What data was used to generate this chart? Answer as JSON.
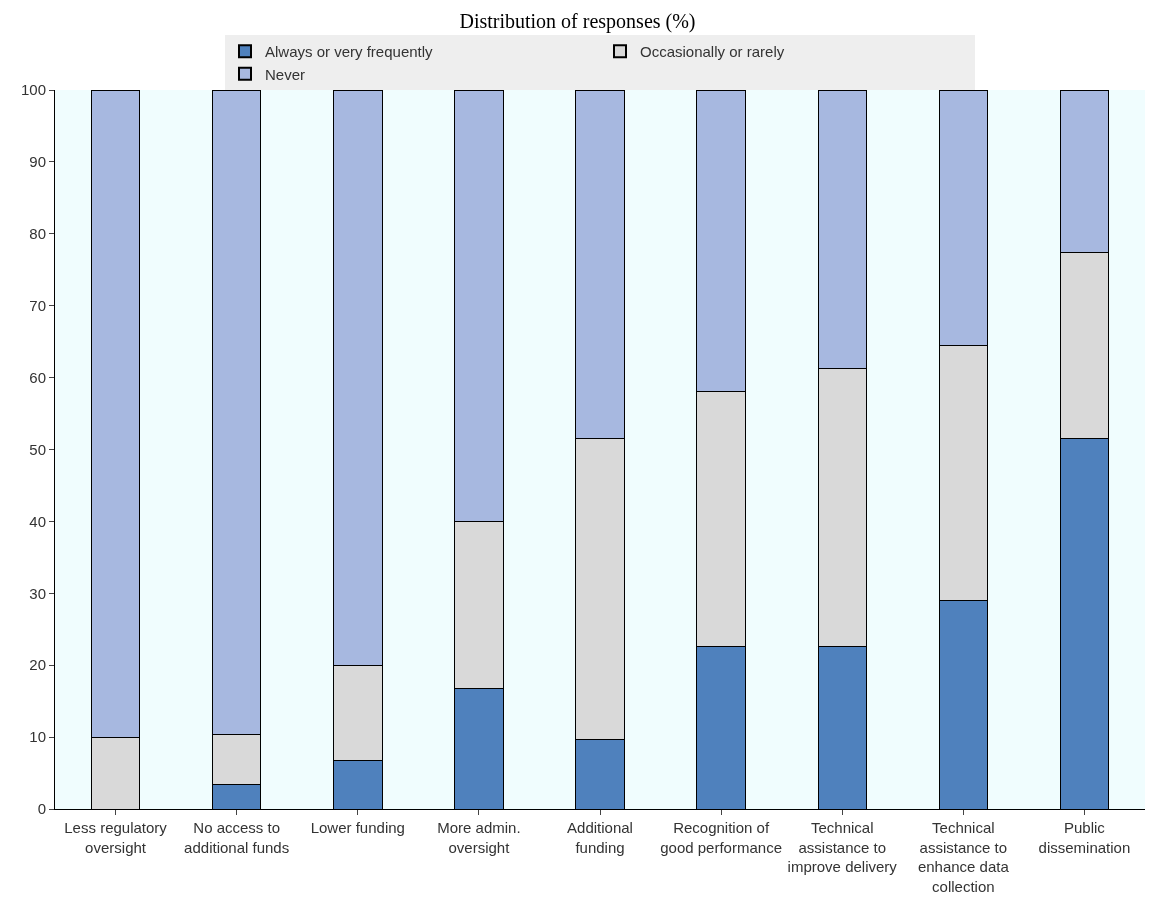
{
  "chart_data": {
    "type": "bar",
    "title": "Distribution of responses (%)",
    "stacked": true,
    "categories": [
      "Less regulatory oversight",
      "No access to additional funds",
      "Lower funding",
      "More admin. oversight",
      "Additional funding",
      "Recognition of good performance",
      "Technical assistance to improve delivery",
      "Technical assistance to enhance data collection",
      "Public dissemination"
    ],
    "series": [
      {
        "name": "Always or very frequently",
        "color": "#4f81bd",
        "values": [
          0,
          3.4,
          6.7,
          16.7,
          9.7,
          22.6,
          22.6,
          29.0,
          51.6
        ]
      },
      {
        "name": "Occasionally or rarely",
        "color": "#d9d9d9",
        "values": [
          10.0,
          6.9,
          13.3,
          23.3,
          41.9,
          35.4,
          38.7,
          35.5,
          25.8
        ]
      },
      {
        "name": "Never",
        "color": "#a7b8e0",
        "values": [
          90.0,
          89.7,
          80.0,
          60.0,
          48.4,
          42.0,
          38.7,
          35.5,
          22.6
        ]
      }
    ],
    "ylim": [
      0,
      100
    ],
    "yticks": [
      0,
      10,
      20,
      30,
      40,
      50,
      60,
      70,
      80,
      90,
      100
    ],
    "grid": false,
    "legend": "top"
  }
}
